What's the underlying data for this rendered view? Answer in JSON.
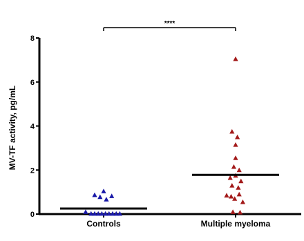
{
  "chart_data": {
    "type": "scatter",
    "title": "",
    "xlabel": "",
    "ylabel": "MV-TF activity, pg/mL",
    "ylim": [
      0,
      8
    ],
    "yticks": [
      0,
      2,
      4,
      6,
      8
    ],
    "ytick_labels": [
      "0",
      "2",
      "4",
      "6",
      "8"
    ],
    "categories": [
      "Controls",
      "Multiple myeloma"
    ],
    "grid": false,
    "legend": "none",
    "significance": {
      "label": "****",
      "between": [
        "Controls",
        "Multiple myeloma"
      ]
    },
    "series": [
      {
        "category": "Controls",
        "marker": "triangle",
        "color": "#1a1aa8",
        "mean": 0.25,
        "points": [
          {
            "x": -0.2,
            "y": 0.1
          },
          {
            "x": -0.14,
            "y": 0.02
          },
          {
            "x": -0.1,
            "y": 0.02
          },
          {
            "x": -0.06,
            "y": 0.02
          },
          {
            "x": -0.02,
            "y": 0.02
          },
          {
            "x": 0.02,
            "y": 0.02
          },
          {
            "x": 0.06,
            "y": 0.02
          },
          {
            "x": 0.1,
            "y": 0.02
          },
          {
            "x": 0.14,
            "y": 0.02
          },
          {
            "x": 0.18,
            "y": 0.02
          },
          {
            "x": -0.1,
            "y": 0.87
          },
          {
            "x": -0.04,
            "y": 0.78
          },
          {
            "x": 0.0,
            "y": 1.04
          },
          {
            "x": 0.03,
            "y": 0.67
          },
          {
            "x": 0.09,
            "y": 0.82
          }
        ]
      },
      {
        "category": "Multiple myeloma",
        "marker": "triangle",
        "color": "#a31a1a",
        "mean": 1.78,
        "points": [
          {
            "x": 0.0,
            "y": 7.05
          },
          {
            "x": -0.04,
            "y": 3.75
          },
          {
            "x": 0.02,
            "y": 3.5
          },
          {
            "x": 0.0,
            "y": 3.15
          },
          {
            "x": 0.0,
            "y": 2.55
          },
          {
            "x": -0.02,
            "y": 2.15
          },
          {
            "x": 0.04,
            "y": 2.0
          },
          {
            "x": -0.06,
            "y": 1.65
          },
          {
            "x": 0.0,
            "y": 1.75
          },
          {
            "x": 0.06,
            "y": 1.5
          },
          {
            "x": -0.04,
            "y": 1.3
          },
          {
            "x": 0.03,
            "y": 1.2
          },
          {
            "x": -0.1,
            "y": 0.85
          },
          {
            "x": -0.05,
            "y": 0.8
          },
          {
            "x": -0.01,
            "y": 0.7
          },
          {
            "x": 0.04,
            "y": 0.9
          },
          {
            "x": 0.08,
            "y": 0.55
          },
          {
            "x": -0.03,
            "y": 0.1
          },
          {
            "x": 0.05,
            "y": 0.08
          }
        ]
      }
    ]
  }
}
